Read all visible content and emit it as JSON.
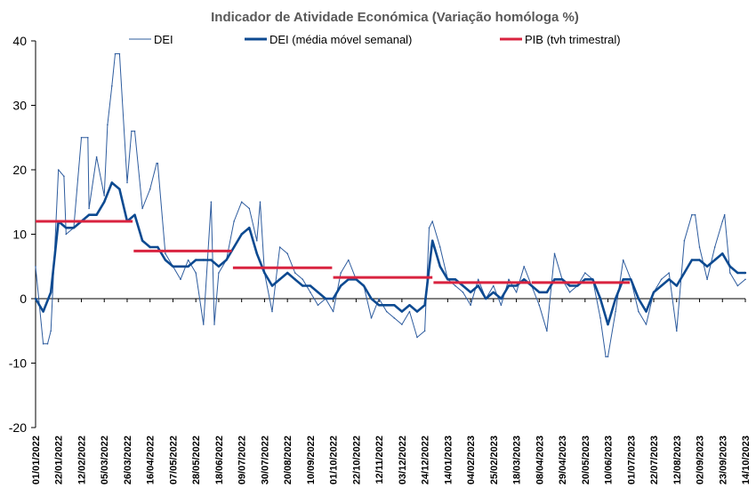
{
  "chart_data": {
    "type": "line",
    "title": "Indicador de Atividade Económica (Variação homóloga %)",
    "ylim": [
      -20,
      40
    ],
    "yticks": [
      -20,
      -10,
      0,
      10,
      20,
      30,
      40
    ],
    "xlim": [
      "2022-01-01",
      "2023-10-14"
    ],
    "xtick_labels": [
      "01/01/2022",
      "22/01/2022",
      "12/02/2022",
      "05/03/2022",
      "26/03/2022",
      "16/04/2022",
      "07/05/2022",
      "28/05/2022",
      "18/06/2022",
      "09/07/2022",
      "30/07/2022",
      "20/08/2022",
      "10/09/2022",
      "01/10/2022",
      "22/10/2022",
      "12/11/2022",
      "03/12/2022",
      "24/12/2022",
      "14/01/2023",
      "04/02/2023",
      "25/02/2023",
      "18/03/2023",
      "08/04/2023",
      "29/04/2023",
      "20/05/2023",
      "10/06/2023",
      "01/07/2023",
      "22/07/2023",
      "12/08/2023",
      "02/09/2023",
      "23/09/2023",
      "14/10/2023"
    ],
    "grid": false,
    "legend_position": "top",
    "colors": {
      "dei": "#2e5c9e",
      "dei_ma": "#0d4a91",
      "pib": "#d9233f"
    },
    "series": [
      {
        "name": "DEI",
        "style": "thin",
        "x": [
          "2022-01-01",
          "2022-01-08",
          "2022-01-15",
          "2022-01-22",
          "2022-01-29",
          "2022-02-05",
          "2022-02-12",
          "2022-02-19",
          "2022-02-26",
          "2022-03-05",
          "2022-03-12",
          "2022-03-19",
          "2022-03-26",
          "2022-04-02",
          "2022-04-09",
          "2022-04-16",
          "2022-04-23",
          "2022-04-30",
          "2022-05-07",
          "2022-05-14",
          "2022-05-21",
          "2022-05-28",
          "2022-06-04",
          "2022-06-11",
          "2022-06-18",
          "2022-06-25",
          "2022-07-02",
          "2022-07-09",
          "2022-07-16",
          "2022-07-23",
          "2022-07-30",
          "2022-08-06",
          "2022-08-13",
          "2022-08-20",
          "2022-08-27",
          "2022-09-03",
          "2022-09-10",
          "2022-09-17",
          "2022-09-24",
          "2022-10-01",
          "2022-10-08",
          "2022-10-15",
          "2022-10-22",
          "2022-10-29",
          "2022-11-05",
          "2022-11-12",
          "2022-11-19",
          "2022-11-26",
          "2022-12-03",
          "2022-12-10",
          "2022-12-17",
          "2022-12-24",
          "2022-12-31",
          "2023-01-07",
          "2023-01-14",
          "2023-01-21",
          "2023-01-28",
          "2023-02-04",
          "2023-02-11",
          "2023-02-18",
          "2023-02-25",
          "2023-03-04",
          "2023-03-11",
          "2023-03-18",
          "2023-03-25",
          "2023-04-01",
          "2023-04-08",
          "2023-04-15",
          "2023-04-22",
          "2023-04-29",
          "2023-05-06",
          "2023-05-13",
          "2023-05-20",
          "2023-05-27",
          "2023-06-03",
          "2023-06-10",
          "2023-06-17",
          "2023-06-24",
          "2023-07-01",
          "2023-07-08",
          "2023-07-15",
          "2023-07-22",
          "2023-07-29",
          "2023-08-05",
          "2023-08-12",
          "2023-08-19",
          "2023-08-26",
          "2023-09-02",
          "2023-09-09",
          "2023-09-16",
          "2023-09-23",
          "2023-09-30",
          "2023-10-07",
          "2023-10-14"
        ],
        "values": [
          5,
          -7,
          -5,
          20,
          10,
          11,
          25,
          14,
          22,
          16,
          33,
          38,
          18,
          26,
          14,
          17,
          21,
          7,
          5,
          3,
          6,
          4,
          -4,
          15,
          4,
          6,
          12,
          15,
          14,
          9,
          4,
          -2,
          8,
          7,
          4,
          3,
          1,
          -1,
          0,
          -2,
          4,
          6,
          3,
          2,
          -3,
          0,
          -2,
          -3,
          -4,
          -2,
          -6,
          -5,
          12,
          8,
          3,
          2,
          1,
          -1,
          3,
          0,
          2,
          -1,
          3,
          1,
          5,
          2,
          -1,
          -5,
          7,
          3,
          1,
          2,
          4,
          3,
          -3,
          -9,
          -2,
          6,
          3,
          -2,
          -4,
          1,
          3,
          4,
          -5,
          9,
          13,
          8,
          3,
          8,
          12,
          4,
          2,
          3
        ],
        "spikes": {
          "x": [
            "2022-01-12",
            "2022-01-27",
            "2022-02-18",
            "2022-03-08",
            "2022-03-15",
            "2022-03-30",
            "2022-04-22",
            "2022-06-14",
            "2022-07-26",
            "2022-12-28",
            "2023-06-08",
            "2023-08-29",
            "2023-09-25"
          ],
          "values": [
            -7,
            19,
            25,
            27,
            38,
            26,
            21,
            -4,
            15,
            11,
            -9,
            13,
            13
          ]
        }
      },
      {
        "name": "DEI (média móvel semanal)",
        "style": "thick",
        "x": [
          "2022-01-01",
          "2022-01-08",
          "2022-01-15",
          "2022-01-22",
          "2022-01-29",
          "2022-02-05",
          "2022-02-12",
          "2022-02-19",
          "2022-02-26",
          "2022-03-05",
          "2022-03-12",
          "2022-03-19",
          "2022-03-26",
          "2022-04-02",
          "2022-04-09",
          "2022-04-16",
          "2022-04-23",
          "2022-04-30",
          "2022-05-07",
          "2022-05-14",
          "2022-05-21",
          "2022-05-28",
          "2022-06-04",
          "2022-06-11",
          "2022-06-18",
          "2022-06-25",
          "2022-07-02",
          "2022-07-09",
          "2022-07-16",
          "2022-07-23",
          "2022-07-30",
          "2022-08-06",
          "2022-08-13",
          "2022-08-20",
          "2022-08-27",
          "2022-09-03",
          "2022-09-10",
          "2022-09-17",
          "2022-09-24",
          "2022-10-01",
          "2022-10-08",
          "2022-10-15",
          "2022-10-22",
          "2022-10-29",
          "2022-11-05",
          "2022-11-12",
          "2022-11-19",
          "2022-11-26",
          "2022-12-03",
          "2022-12-10",
          "2022-12-17",
          "2022-12-24",
          "2022-12-31",
          "2023-01-07",
          "2023-01-14",
          "2023-01-21",
          "2023-01-28",
          "2023-02-04",
          "2023-02-11",
          "2023-02-18",
          "2023-02-25",
          "2023-03-04",
          "2023-03-11",
          "2023-03-18",
          "2023-03-25",
          "2023-04-01",
          "2023-04-08",
          "2023-04-15",
          "2023-04-22",
          "2023-04-29",
          "2023-05-06",
          "2023-05-13",
          "2023-05-20",
          "2023-05-27",
          "2023-06-03",
          "2023-06-10",
          "2023-06-17",
          "2023-06-24",
          "2023-07-01",
          "2023-07-08",
          "2023-07-15",
          "2023-07-22",
          "2023-07-29",
          "2023-08-05",
          "2023-08-12",
          "2023-08-19",
          "2023-08-26",
          "2023-09-02",
          "2023-09-09",
          "2023-09-16",
          "2023-09-23",
          "2023-09-30",
          "2023-10-07",
          "2023-10-14"
        ],
        "values": [
          0,
          -2,
          1,
          12,
          11,
          11,
          12,
          13,
          13,
          15,
          18,
          17,
          12,
          13,
          9,
          8,
          8,
          6,
          5,
          5,
          5,
          6,
          6,
          6,
          5,
          6,
          8,
          10,
          11,
          7,
          4,
          2,
          3,
          4,
          3,
          2,
          2,
          1,
          0,
          0,
          2,
          3,
          3,
          2,
          0,
          -1,
          -1,
          -1,
          -2,
          -1,
          -2,
          -1,
          9,
          5,
          3,
          3,
          2,
          1,
          2,
          0,
          1,
          0,
          2,
          2,
          3,
          2,
          1,
          1,
          3,
          3,
          2,
          2,
          3,
          3,
          0,
          -4,
          0,
          3,
          3,
          0,
          -2,
          1,
          2,
          3,
          2,
          4,
          6,
          6,
          5,
          6,
          7,
          5,
          4,
          4
        ]
      },
      {
        "name": "PIB (tvh trimestral)",
        "style": "step",
        "segments": [
          {
            "start": "2022-01-01",
            "end": "2022-03-31",
            "value": 12
          },
          {
            "start": "2022-04-01",
            "end": "2022-06-30",
            "value": 7.4
          },
          {
            "start": "2022-07-01",
            "end": "2022-09-30",
            "value": 4.8
          },
          {
            "start": "2022-10-01",
            "end": "2022-12-31",
            "value": 3.3
          },
          {
            "start": "2023-01-01",
            "end": "2023-03-31",
            "value": 2.5
          },
          {
            "start": "2023-04-01",
            "end": "2023-06-30",
            "value": 2.5
          }
        ]
      }
    ]
  }
}
